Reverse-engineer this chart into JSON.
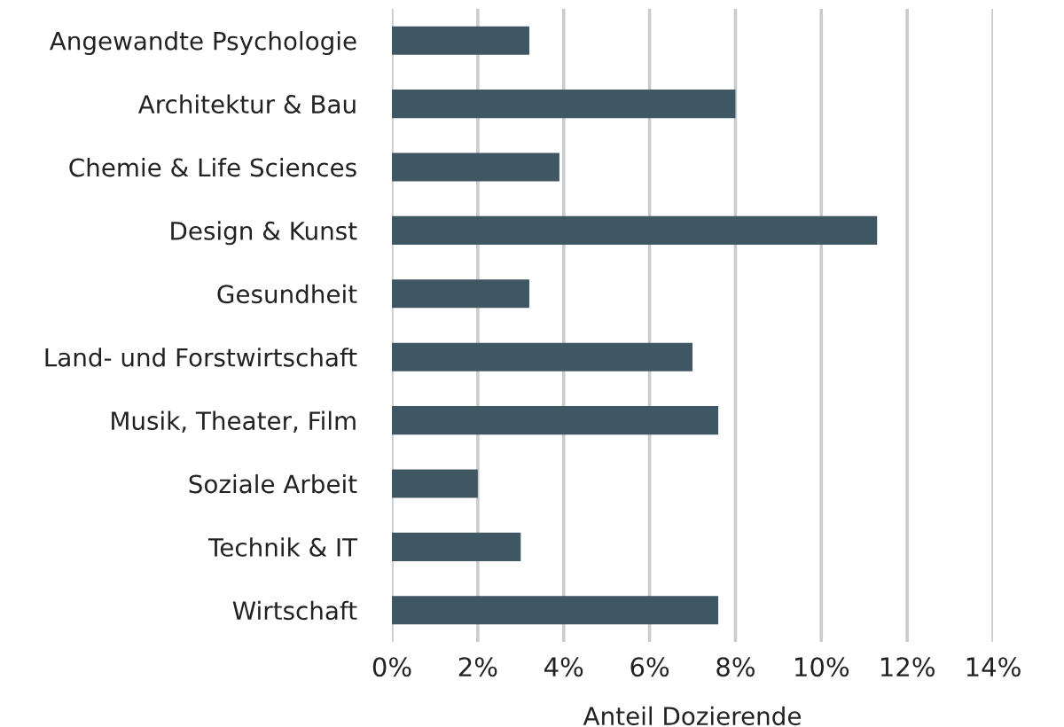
{
  "chart_data": {
    "type": "bar",
    "orientation": "horizontal",
    "xlabel": "Anteil Dozierende",
    "categories": [
      "Angewandte Psychologie",
      "Architektur & Bau",
      "Chemie & Life Sciences",
      "Design & Kunst",
      "Gesundheit",
      "Land- und Forstwirtschaft",
      "Musik, Theater, Film",
      "Soziale Arbeit",
      "Technik & IT",
      "Wirtschaft"
    ],
    "values": [
      3.2,
      8.0,
      3.9,
      11.3,
      3.2,
      7.0,
      7.6,
      2.0,
      3.0,
      7.6
    ],
    "color": "#3f5663",
    "xlim": [
      0,
      14
    ],
    "xticks": [
      {
        "value": 0,
        "label": "0%"
      },
      {
        "value": 2,
        "label": "2%"
      },
      {
        "value": 4,
        "label": "4%"
      },
      {
        "value": 6,
        "label": "6%"
      },
      {
        "value": 8,
        "label": "8%"
      },
      {
        "value": 10,
        "label": "10%"
      },
      {
        "value": 12,
        "label": "12%"
      },
      {
        "value": 14,
        "label": "14%"
      }
    ],
    "grid": "x",
    "legend": false
  }
}
